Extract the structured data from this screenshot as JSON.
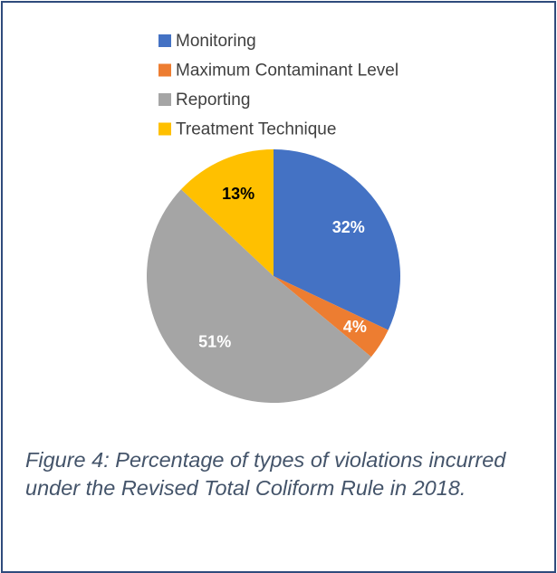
{
  "chart_data": {
    "type": "pie",
    "categories": [
      "Monitoring",
      "Maximum Contaminant Level",
      "Reporting",
      "Treatment Technique"
    ],
    "values": [
      32,
      4,
      51,
      13
    ],
    "value_labels": [
      "32%",
      "4%",
      "51%",
      "13%"
    ],
    "colors": [
      "#4472c4",
      "#ed7d31",
      "#a5a5a5",
      "#ffc000"
    ],
    "label_colors": [
      "#ffffff",
      "#ffffff",
      "#ffffff",
      "#000000"
    ],
    "legend": "top",
    "caption": "Figure 4: Percentage of types of violations incurred under the Revised Total Coliform Rule in 2018."
  }
}
